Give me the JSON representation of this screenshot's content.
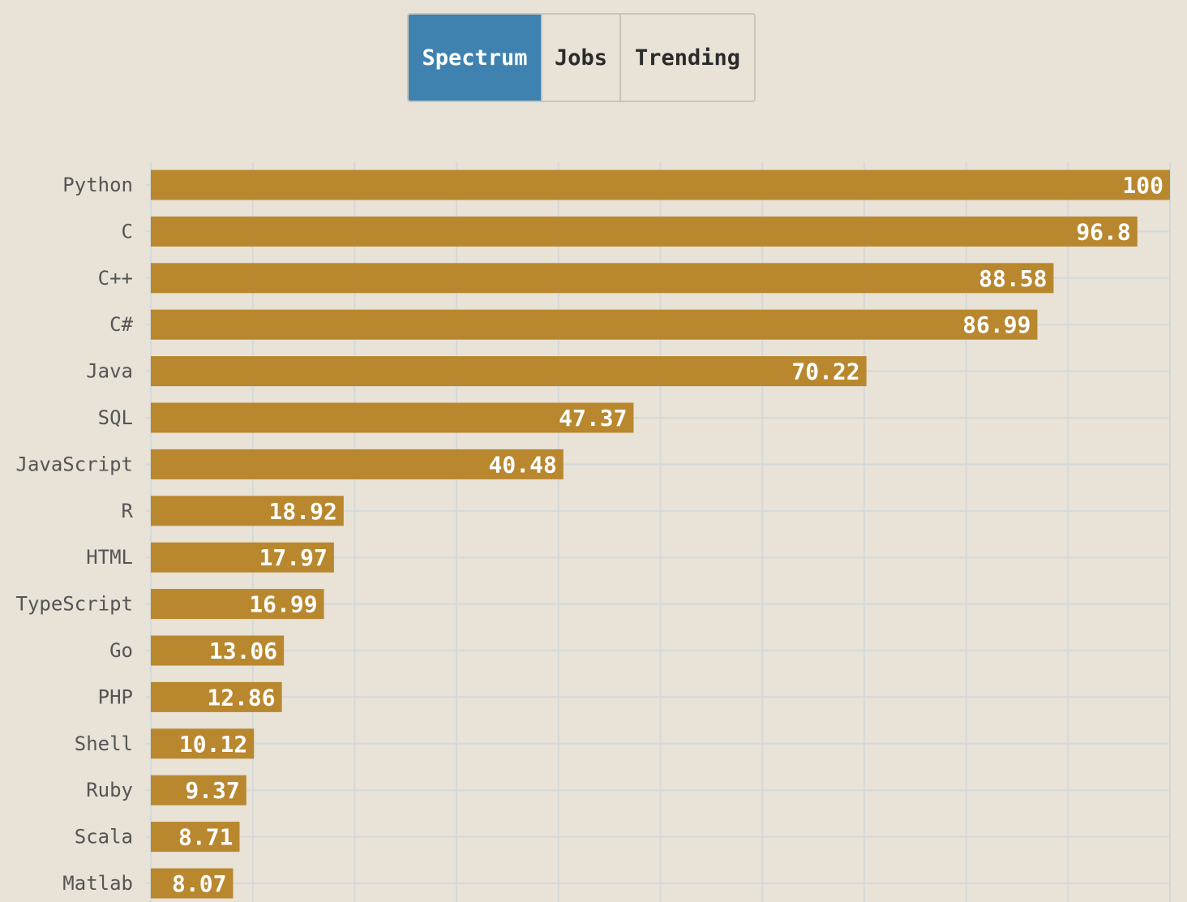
{
  "tabs": [
    {
      "label": "Spectrum",
      "active": true
    },
    {
      "label": "Jobs",
      "active": false
    },
    {
      "label": "Trending",
      "active": false
    }
  ],
  "colors": {
    "bar": "#b8872e",
    "active_tab": "#3f82b0",
    "background": "#e8e2d7",
    "grid": "#d5d9d9"
  },
  "chart_data": {
    "type": "bar",
    "orientation": "horizontal",
    "categories": [
      "Python",
      "C",
      "C++",
      "C#",
      "Java",
      "SQL",
      "JavaScript",
      "R",
      "HTML",
      "TypeScript",
      "Go",
      "PHP",
      "Shell",
      "Ruby",
      "Scala",
      "Matlab"
    ],
    "values": [
      100,
      96.8,
      88.58,
      86.99,
      70.22,
      47.37,
      40.48,
      18.92,
      17.97,
      16.99,
      13.06,
      12.86,
      10.12,
      9.37,
      8.71,
      8.07
    ],
    "value_labels": [
      "100",
      "96.8",
      "88.58",
      "86.99",
      "70.22",
      "47.37",
      "40.48",
      "18.92",
      "17.97",
      "16.99",
      "13.06",
      "12.86",
      "10.12",
      "9.37",
      "8.71",
      "8.07"
    ],
    "xlim": [
      0,
      100
    ],
    "grid": true,
    "title": "",
    "xlabel": "",
    "ylabel": ""
  }
}
